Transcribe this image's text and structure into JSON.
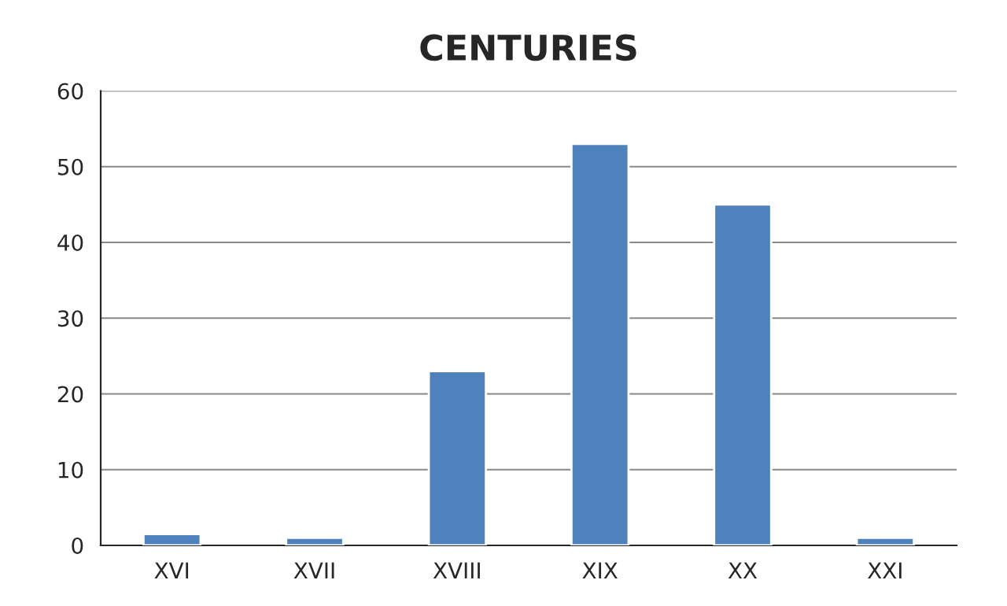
{
  "chart_data": {
    "type": "bar",
    "title": "CENTURIES",
    "categories": [
      "XVI",
      "XVII",
      "XVIII",
      "XIX",
      "XX",
      "XXI"
    ],
    "values": [
      1.5,
      1,
      23,
      53,
      45,
      1
    ],
    "color": "#4f81bd",
    "ylim": [
      0,
      60
    ],
    "yticks": [
      0,
      10,
      20,
      30,
      40,
      50,
      60
    ],
    "grid": "y"
  }
}
